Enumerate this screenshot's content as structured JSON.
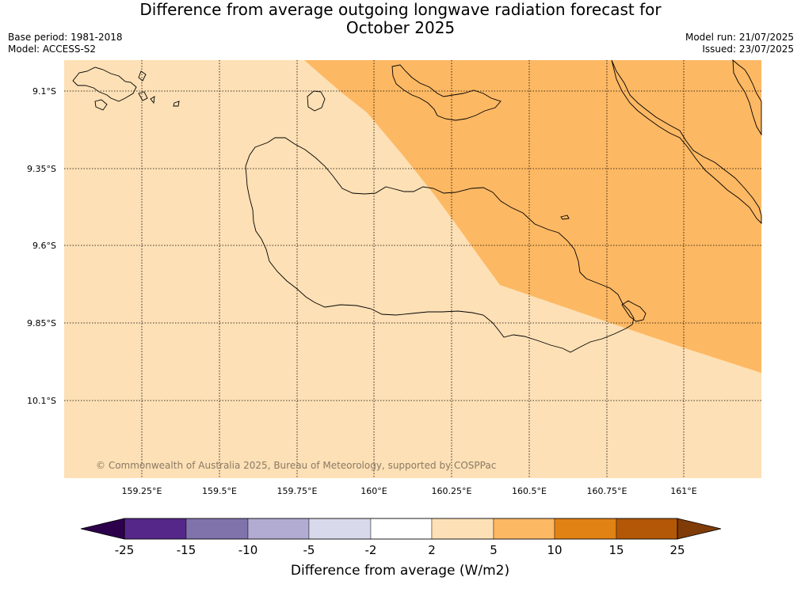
{
  "header": {
    "title_line1": "Difference from average outgoing longwave radiation forecast for",
    "title_line2": "October 2025",
    "base_period": "Base period: 1981-2018",
    "model": "Model: ACCESS-S2",
    "model_run": "Model run: 21/07/2025",
    "issued": "Issued: 23/07/2025"
  },
  "map": {
    "lat_labels": [
      "9.1°S",
      "9.35°S",
      "9.6°S",
      "9.85°S",
      "10.1°S"
    ],
    "lon_labels": [
      "159.25°E",
      "159.5°E",
      "159.75°E",
      "160°E",
      "160.25°E",
      "160.5°E",
      "160.75°E",
      "161°E"
    ],
    "background_class_color": "#fde0b5",
    "orange_class_color": "#fdb863",
    "copyright": "© Commonwealth of Australia 2025, Bureau of Meteorology, supported by COSPPac"
  },
  "colorbar": {
    "title": "Difference from average (W/m2)",
    "ticks": [
      "-25",
      "-15",
      "-10",
      "-5",
      "-2",
      "2",
      "5",
      "10",
      "15",
      "25"
    ],
    "colors": [
      "#542788",
      "#8073ac",
      "#b2abd2",
      "#d8daeb",
      "#ffffff",
      "#fee0b6",
      "#fdb863",
      "#e08214",
      "#b35806"
    ],
    "low_extend_color": "#2d004b",
    "high_extend_color": "#7f3b08"
  }
}
